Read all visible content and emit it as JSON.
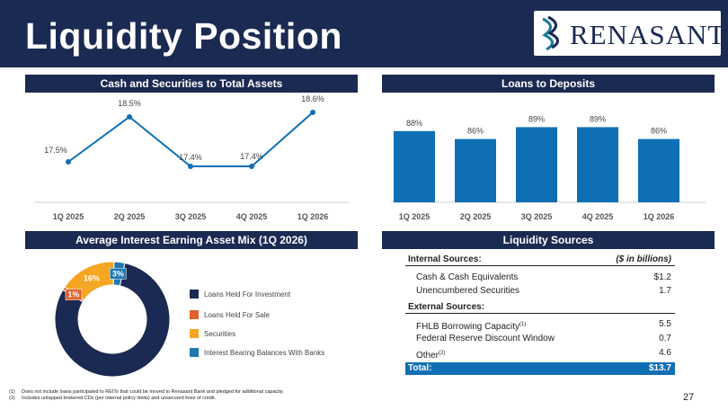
{
  "header": {
    "title": "Liquidity Position",
    "logo_text": "RENASANT"
  },
  "colors": {
    "navy": "#1b2a52",
    "blue": "#0f6fb5",
    "orange": "#e0612a",
    "gold": "#f5a623",
    "teal": "#1f78b4"
  },
  "panels": {
    "cash_title": "Cash and Securities to Total Assets",
    "loans_title": "Loans to Deposits",
    "mix_title": "Average Interest Earning Asset Mix (1Q 2026)",
    "liq_title": "Liquidity Sources"
  },
  "chart_data": [
    {
      "type": "line",
      "title": "Cash and Securities to Total Assets",
      "categories": [
        "1Q 2025",
        "2Q 2025",
        "3Q 2025",
        "4Q 2025",
        "1Q 2026"
      ],
      "values": [
        17.5,
        18.5,
        17.4,
        17.4,
        18.6
      ],
      "labels": [
        "17.5%",
        "18.5%",
        "17.4%",
        "17.4%",
        "18.6%"
      ],
      "ylim": [
        17.0,
        18.8
      ],
      "color": "#0f6fb5"
    },
    {
      "type": "bar",
      "title": "Loans to Deposits",
      "categories": [
        "1Q 2025",
        "2Q 2025",
        "3Q 2025",
        "4Q 2025",
        "1Q 2026"
      ],
      "values": [
        88,
        86,
        89,
        89,
        86
      ],
      "labels": [
        "88%",
        "86%",
        "89%",
        "89%",
        "86%"
      ],
      "ylim": [
        70,
        95
      ],
      "color": "#0f6fb5"
    },
    {
      "type": "pie",
      "title": "Average Interest Earning Asset Mix (1Q 2026)",
      "donut": true,
      "slices": [
        {
          "name": "Loans Held For Investment",
          "value": 80,
          "label": "80%",
          "color": "#1b2a52"
        },
        {
          "name": "Loans Held For Sale",
          "value": 1,
          "label": "1%",
          "color": "#e0612a"
        },
        {
          "name": "Securities",
          "value": 16,
          "label": "16%",
          "color": "#f5a623"
        },
        {
          "name": "Interest Bearing Balances With Banks",
          "value": 3,
          "label": "3%",
          "color": "#1f78b4"
        }
      ]
    }
  ],
  "liquidity_table": {
    "internal_label": "Internal Sources:",
    "unit_label": "($ in billions)",
    "internal_rows": [
      {
        "label": "Cash & Cash Equivalents",
        "value": "$1.2"
      },
      {
        "label": "Unencumbered Securities",
        "value": "1.7"
      }
    ],
    "external_label": "External Sources:",
    "external_rows": [
      {
        "label": "FHLB Borrowing Capacity",
        "sup": "(1)",
        "value": "5.5"
      },
      {
        "label": "Federal Reserve Discount Window",
        "sup": "",
        "value": "0.7"
      },
      {
        "label": "Other",
        "sup": "(2)",
        "value": "4.6"
      }
    ],
    "total_label": "Total:",
    "total_value": "$13.7"
  },
  "footnotes": [
    {
      "num": "(1)",
      "text": "Does not include loans participated to REITs that could be moved to Renasant Bank and pledged for additional capacity."
    },
    {
      "num": "(2)",
      "text": "Includes untapped brokered CDs (per internal policy limits) and unsecured lines of credit."
    }
  ],
  "page_number": "27"
}
